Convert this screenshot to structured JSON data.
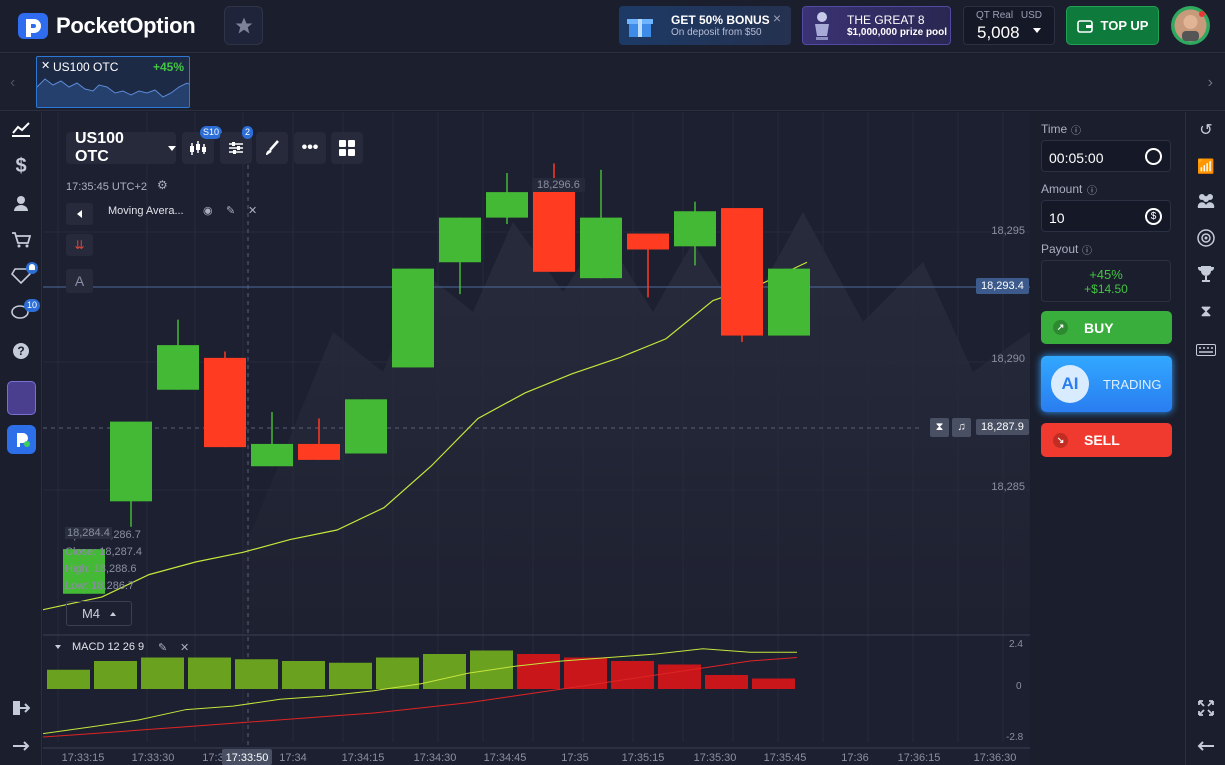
{
  "app": {
    "brand": "PocketOption"
  },
  "header": {
    "promo_bonus": {
      "title": "GET 50% BONUS",
      "sub": "On deposit from $50"
    },
    "promo_great8": {
      "title": "THE GREAT 8",
      "sub": "$1,000,000 prize pool"
    },
    "account": {
      "type": "QT Real",
      "currency": "USD",
      "balance": "5,008"
    },
    "topup_label": "TOP UP"
  },
  "asset_tab": {
    "name": "US100 OTC",
    "payout": "+45%"
  },
  "leftbar": {
    "diamond_badge": "",
    "chat_badge": "10"
  },
  "toolbar": {
    "asset": "US100 OTC",
    "candle_badge": "S10",
    "indicator_badge": "2",
    "time": "17:35:45 UTC+2",
    "indicator_name": "Moving Avera...",
    "timeframe": "M4",
    "letter_a": "A"
  },
  "ohlc": {
    "open": "Open: 18,286.7",
    "close": "Close: 18,287.4",
    "high": "High: 18,288.6",
    "low": "Low: 18,286.7",
    "overlay": "18,284.4"
  },
  "price_labels": {
    "top": "18,296.6",
    "current": "18,293.4",
    "open_trade": "18,287.9"
  },
  "macd": {
    "label": "MACD 12 26 9",
    "ticks": [
      "2.4",
      "0",
      "-2.8"
    ]
  },
  "panel": {
    "time_label": "Time",
    "time_value": "00:05:00",
    "amount_label": "Amount",
    "amount_value": "10",
    "payout_label": "Payout",
    "payout_pct": "+45%",
    "payout_amount": "+$14.50",
    "buy": "BUY",
    "ai": "AI",
    "ai_trading": "TRADING",
    "sell": "SELL"
  },
  "chart_data": {
    "type": "candlestick",
    "y_ticks": [
      "18,295",
      "18,290",
      "18,285"
    ],
    "ylim": [
      18282.5,
      18298.5
    ],
    "x_ticks": [
      "17:33:15",
      "17:33:30",
      "17:3",
      "17:33:50",
      "17:34",
      "17:34:15",
      "17:34:30",
      "17:34:45",
      "17:35",
      "17:35:15",
      "17:35:30",
      "17:35:45",
      "17:36",
      "17:36:15",
      "17:36:30"
    ],
    "candles": [
      {
        "o": 18283.7,
        "c": 18285.1,
        "h": 18285.1,
        "l": 18283.7
      },
      {
        "o": 18286.6,
        "c": 18289.1,
        "h": 18289.1,
        "l": 18285.8
      },
      {
        "o": 18290.1,
        "c": 18291.5,
        "h": 18292.3,
        "l": 18290.1
      },
      {
        "o": 18291.1,
        "c": 18288.3,
        "h": 18291.3,
        "l": 18288.3
      },
      {
        "o": 18287.7,
        "c": 18288.4,
        "h": 18289.4,
        "l": 18287.7
      },
      {
        "o": 18288.4,
        "c": 18287.9,
        "h": 18289.2,
        "l": 18287.9
      },
      {
        "o": 18288.1,
        "c": 18289.8,
        "h": 18289.8,
        "l": 18288.1
      },
      {
        "o": 18290.8,
        "c": 18293.9,
        "h": 18293.9,
        "l": 18290.8
      },
      {
        "o": 18294.1,
        "c": 18295.5,
        "h": 18295.5,
        "l": 18293.1
      },
      {
        "o": 18295.5,
        "c": 18296.3,
        "h": 18296.9,
        "l": 18295.3
      },
      {
        "o": 18296.6,
        "c": 18293.8,
        "h": 18297.2,
        "l": 18293.8
      },
      {
        "o": 18293.6,
        "c": 18295.5,
        "h": 18297.0,
        "l": 18293.6
      },
      {
        "o": 18295.0,
        "c": 18294.5,
        "h": 18295.0,
        "l": 18293.0
      },
      {
        "o": 18294.6,
        "c": 18295.7,
        "h": 18296.0,
        "l": 18294.0
      },
      {
        "o": 18295.8,
        "c": 18291.8,
        "h": 18295.8,
        "l": 18291.6
      },
      {
        "o": 18291.8,
        "c": 18293.9,
        "h": 18293.9,
        "l": 18291.8
      }
    ],
    "ma": [
      18283.2,
      18283.6,
      18284.3,
      18284.7,
      18285.0,
      18285.4,
      18285.7,
      18286.4,
      18287.7,
      18289.2,
      18290.0,
      18290.6,
      18291.1,
      18291.7,
      18292.9,
      18293.4,
      18294.1
    ],
    "macd_hist": [
      1.1,
      1.6,
      1.8,
      1.8,
      1.7,
      1.6,
      1.5,
      1.8,
      2.0,
      2.2,
      2.0,
      1.8,
      1.6,
      1.4,
      0.8,
      0.6
    ],
    "macd_line": [
      -2.6,
      -2.2,
      -1.8,
      -1.2,
      -1.0,
      -0.6,
      -0.4,
      -0.1,
      0.3,
      0.9,
      1.3,
      1.6,
      1.8,
      2.0,
      2.3,
      2.1,
      2.1
    ],
    "signal_line": [
      -2.8,
      -2.6,
      -2.4,
      -2.2,
      -2.0,
      -1.8,
      -1.6,
      -1.4,
      -1.1,
      -0.8,
      -0.4,
      0.0,
      0.4,
      0.8,
      1.2,
      1.6,
      1.8
    ],
    "ohlc_labels": [
      "Open",
      "Close",
      "High",
      "Low"
    ]
  }
}
